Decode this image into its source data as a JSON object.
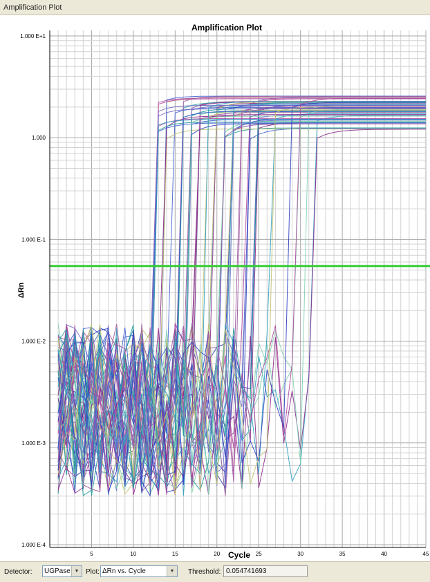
{
  "window": {
    "title": "Amplification Plot"
  },
  "chart_data": {
    "type": "line",
    "title": "Amplification Plot",
    "xlabel": "Cycle",
    "ylabel": "ΔRn",
    "xlim": [
      0,
      45
    ],
    "ylim": [
      0.0001,
      10
    ],
    "yscale": "log",
    "grid": true,
    "x_ticks": [
      5,
      10,
      15,
      20,
      25,
      30,
      35,
      40,
      45
    ],
    "y_ticks": [
      {
        "value": 10,
        "label": "1.000 E+1"
      },
      {
        "value": 1,
        "label": "1.000"
      },
      {
        "value": 0.1,
        "label": "1.000 E-1"
      },
      {
        "value": 0.01,
        "label": "1.000 E-2"
      },
      {
        "value": 0.001,
        "label": "1.000 E-3"
      },
      {
        "value": 0.0001,
        "label": "1.000 E-4"
      }
    ],
    "threshold": 0.054741693,
    "threshold_color": "#33cc33",
    "series_palette": [
      "#8a2a8a",
      "#1f9a9a",
      "#2c3ec0",
      "#b04aa0",
      "#7fd0b0",
      "#4060d0",
      "#c0c070",
      "#6a6ac8",
      "#30a0c0",
      "#a05aa0"
    ],
    "series_count": 60,
    "ct_range": [
      15,
      35
    ],
    "plateau_range": [
      1.2,
      2.6
    ],
    "baseline_range": [
      0.0003,
      0.015
    ]
  },
  "statusbar": {
    "detector_label": "Detector:",
    "detector_value": "UGPase",
    "plot_label": "Plot:",
    "plot_value": "ΔRn vs. Cycle",
    "threshold_label": "Threshold:",
    "threshold_value": "0.054741693"
  }
}
